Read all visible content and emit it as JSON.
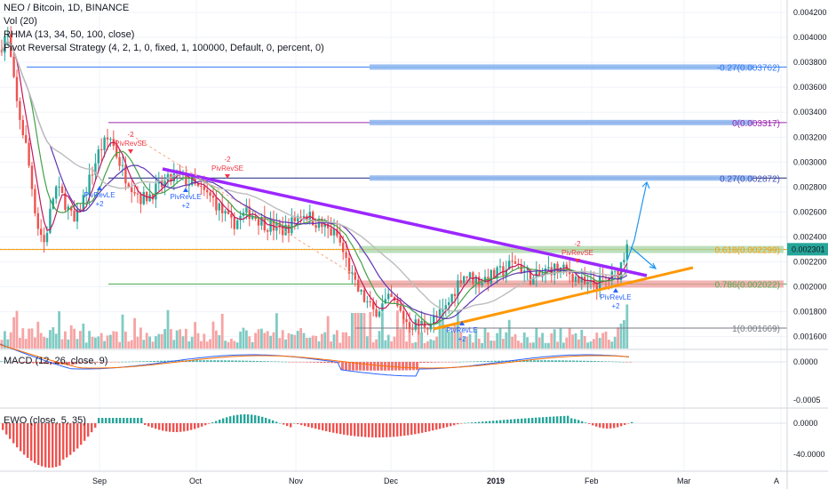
{
  "header": {
    "title": "NEO / Bitcoin, 1D, BINANCE",
    "vol": "Vol (20)",
    "rmha": "RHMA (13, 34, 50, 100, close)",
    "strategy": "Pivot Reversal Strategy (4, 2, 1, 0, fixed, 1, 100000, Default, 0, percent, 0)"
  },
  "price_axis": {
    "ticks": [
      "0.004200",
      "0.004000",
      "0.003800",
      "0.003600",
      "0.003400",
      "0.003200",
      "0.003000",
      "0.002800",
      "0.002600",
      "0.002400",
      "0.002200",
      "0.002000",
      "0.001800",
      "0.001600"
    ],
    "current_price": "0.002301",
    "current_price_color": "#26a69a"
  },
  "time_axis": {
    "labels": [
      "Sep",
      "Oct",
      "Nov",
      "Dec",
      "2019",
      "Feb",
      "Mar",
      "A"
    ]
  },
  "fib_levels": [
    {
      "label": "-0.27(0.003762)",
      "color": "#3179f5"
    },
    {
      "label": "0(0.003317)",
      "color": "#9c27b0"
    },
    {
      "label": "0.27(0.002872)",
      "color": "#3f51b5"
    },
    {
      "label": "0.618(0.002299)",
      "color": "#ff9800"
    },
    {
      "label": "0.786(0.002022)",
      "color": "#4caf50"
    },
    {
      "label": "1(0.001669)",
      "color": "#787b86"
    }
  ],
  "signals": [
    {
      "label": "-2",
      "text": "PivRevSE",
      "color": "#f23645"
    },
    {
      "label": "PivRevLE",
      "text": "+2",
      "color": "#2962ff"
    },
    {
      "label": "PivRevLE",
      "text": "+2",
      "color": "#2962ff"
    },
    {
      "label": "-2",
      "text": "PivRevSE",
      "color": "#f23645"
    },
    {
      "label": "PivRevLE",
      "text": "+2",
      "color": "#2962ff"
    },
    {
      "label": "-2",
      "text": "PivRevSE",
      "color": "#f23645"
    },
    {
      "label": "PivRevLE",
      "text": "+2",
      "color": "#2962ff"
    }
  ],
  "macd": {
    "label": "MACD (12, 26, close, 9)",
    "ticks": [
      "0.0000",
      "-0.0005"
    ]
  },
  "ewo": {
    "label": "EWO (close, 5, 35)",
    "ticks": [
      "0.0000",
      "-40.0000"
    ]
  },
  "colors": {
    "up": "#26a69a",
    "down": "#ef5350",
    "trend_purple": "#9c27ff",
    "trend_orange": "#ff9800",
    "projection": "#2196f3"
  },
  "chart_data": {
    "type": "candlestick",
    "symbol": "NEO/BTC",
    "interval": "1D",
    "ylim": [
      0.00155,
      0.00428
    ],
    "fib_levels": [
      0.003762,
      0.003317,
      0.002872,
      0.002299,
      0.002022,
      0.001669
    ],
    "last_price": 0.002301,
    "trendlines": [
      {
        "name": "resistance",
        "from": [
          0.00294,
          "Sep 23"
        ],
        "to": [
          0.00208,
          "Feb 20"
        ]
      },
      {
        "name": "support",
        "from": [
          0.00168,
          "Dec 18"
        ],
        "to": [
          0.00213,
          "Feb 28"
        ]
      }
    ]
  }
}
